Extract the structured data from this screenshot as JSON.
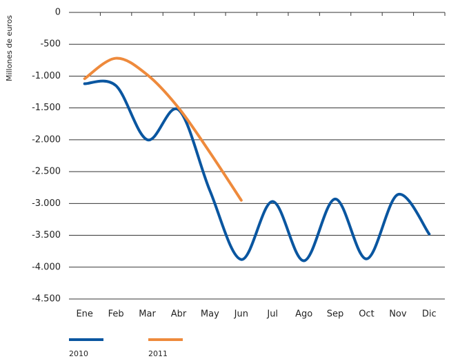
{
  "chart_data": {
    "type": "line",
    "y_label": "Millones de euros",
    "categories": [
      "Ene",
      "Feb",
      "Mar",
      "Abr",
      "May",
      "Jun",
      "Jul",
      "Ago",
      "Sep",
      "Oct",
      "Nov",
      "Dic"
    ],
    "series": [
      {
        "name": "2010",
        "color": "#0a56a0",
        "values": [
          -1120,
          -1150,
          -2000,
          -1530,
          -2800,
          -3880,
          -2970,
          -3900,
          -2930,
          -3870,
          -2860,
          -3480
        ]
      },
      {
        "name": "2011",
        "color": "#ee8a3c",
        "values": [
          -1040,
          -720,
          -980,
          -1500,
          -2200,
          -2950,
          null,
          null,
          null,
          null,
          null,
          null
        ]
      }
    ],
    "ylim": [
      -4500,
      0
    ],
    "yticks": [
      0,
      -500,
      {
        "value": -1000,
        "label": "-1.000"
      },
      {
        "value": -1500,
        "label": "-1.500"
      },
      {
        "value": -2000,
        "label": "-2.000"
      },
      {
        "value": -2500,
        "label": "-2.500"
      },
      {
        "value": -3000,
        "label": "-3.000"
      },
      {
        "value": -3500,
        "label": "-3.500"
      },
      {
        "value": -4000,
        "label": "-4.000"
      },
      {
        "value": -4500,
        "label": "-4.500"
      }
    ],
    "grid": true,
    "smooth": true,
    "legend": "bottom"
  }
}
